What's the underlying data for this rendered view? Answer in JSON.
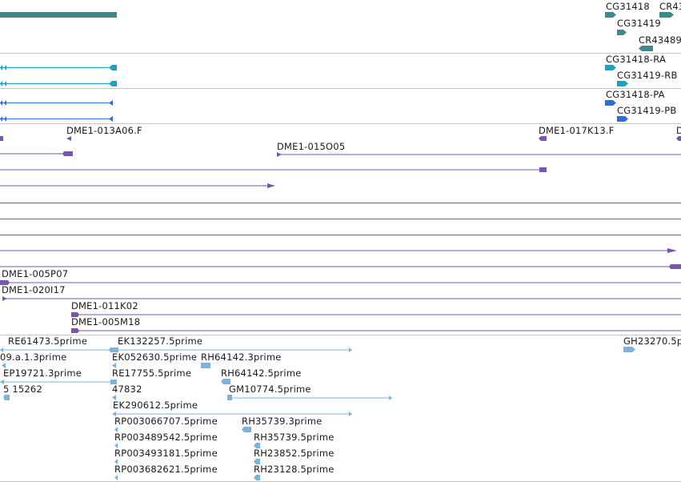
{
  "colors": {
    "gene": "#3a8c8c",
    "rna": "#1aa3c8",
    "protein": "#2a6fd6",
    "bac": "#7a55b0",
    "est": "#7ab4dc",
    "separator": "#c8c8c8"
  },
  "gene_track": {
    "labels": [
      "CG31418",
      "CR43",
      "CG31419",
      "CR43489"
    ]
  },
  "rna_track": {
    "labels": [
      "CG31418-RA",
      "CG31419-RB"
    ]
  },
  "protein_track": {
    "labels": [
      "CG31418-PA",
      "CG31419-PB"
    ]
  },
  "bac_track": {
    "labels": [
      "DME1-013A06.F",
      "DME1-017K13.F",
      "D",
      "DME1-015O05",
      "DME1-005P07",
      "DME1-020I17",
      "DME1-011K02",
      "DME1-005M18"
    ]
  },
  "est_track": {
    "labels": [
      "RE61473.5prime",
      "EK132257.5prime",
      "GH23270.5p",
      "09.a.1.3prime",
      "EK052630.5prime",
      "RH64142.3prime",
      "EP19721.3prime",
      "RE17755.5prime",
      "RH64142.5prime",
      "47832",
      "GM10774.5prime",
      "5 15262",
      "EK290612.5prime",
      "RP003066707.5prime",
      "RH35739.3prime",
      "RP003489542.5prime",
      "RH35739.5prime",
      "RP003493181.5prime",
      "RH23852.5prime",
      "RP003682621.5prime",
      "RH23128.5prime"
    ]
  }
}
